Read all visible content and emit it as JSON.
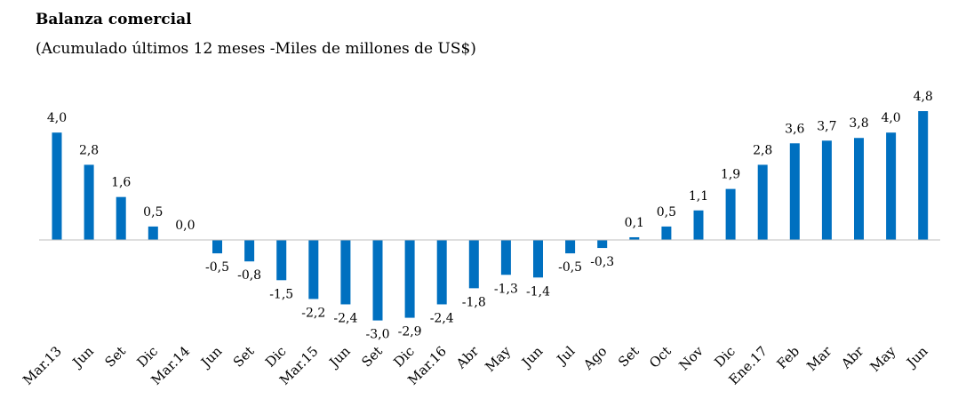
{
  "chart_data": {
    "type": "bar",
    "title": "Balanza comercial",
    "subtitle": "(Acumulado últimos 12 meses -Miles de millones de US$)",
    "xlabel": "",
    "ylabel": "",
    "ylim": [
      -3.5,
      5.0
    ],
    "grid": false,
    "legend": "none",
    "bar_color": "#0070C0",
    "categories": [
      "Mar.13",
      "Jun",
      "Set",
      "Dic",
      "Mar.14",
      "Jun",
      "Set",
      "Dic",
      "Mar.15",
      "Jun",
      "Set",
      "Dic",
      "Mar.16",
      "Abr",
      "May",
      "Jun",
      "Jul",
      "Ago",
      "Set",
      "Oct",
      "Nov",
      "Dic",
      "Ene.17",
      "Feb",
      "Mar",
      "Abr",
      "May",
      "Jun"
    ],
    "values": [
      4.0,
      2.8,
      1.6,
      0.5,
      0.0,
      -0.5,
      -0.8,
      -1.5,
      -2.2,
      -2.4,
      -3.0,
      -2.9,
      -2.4,
      -1.8,
      -1.3,
      -1.4,
      -0.5,
      -0.3,
      0.1,
      0.5,
      1.1,
      1.9,
      2.8,
      3.6,
      3.7,
      3.8,
      4.0,
      4.8
    ],
    "value_labels": [
      "4,0",
      "2,8",
      "1,6",
      "0,5",
      "0,0",
      "-0,5",
      "-0,8",
      "-1,5",
      "-2,2",
      "-2,4",
      "-3,0",
      "-2,9",
      "-2,4",
      "-1,8",
      "-1,3",
      "-1,4",
      "-0,5",
      "-0,3",
      "0,1",
      "0,5",
      "1,1",
      "1,9",
      "2,8",
      "3,6",
      "3,7",
      "3,8",
      "4,0",
      "4,8"
    ]
  }
}
